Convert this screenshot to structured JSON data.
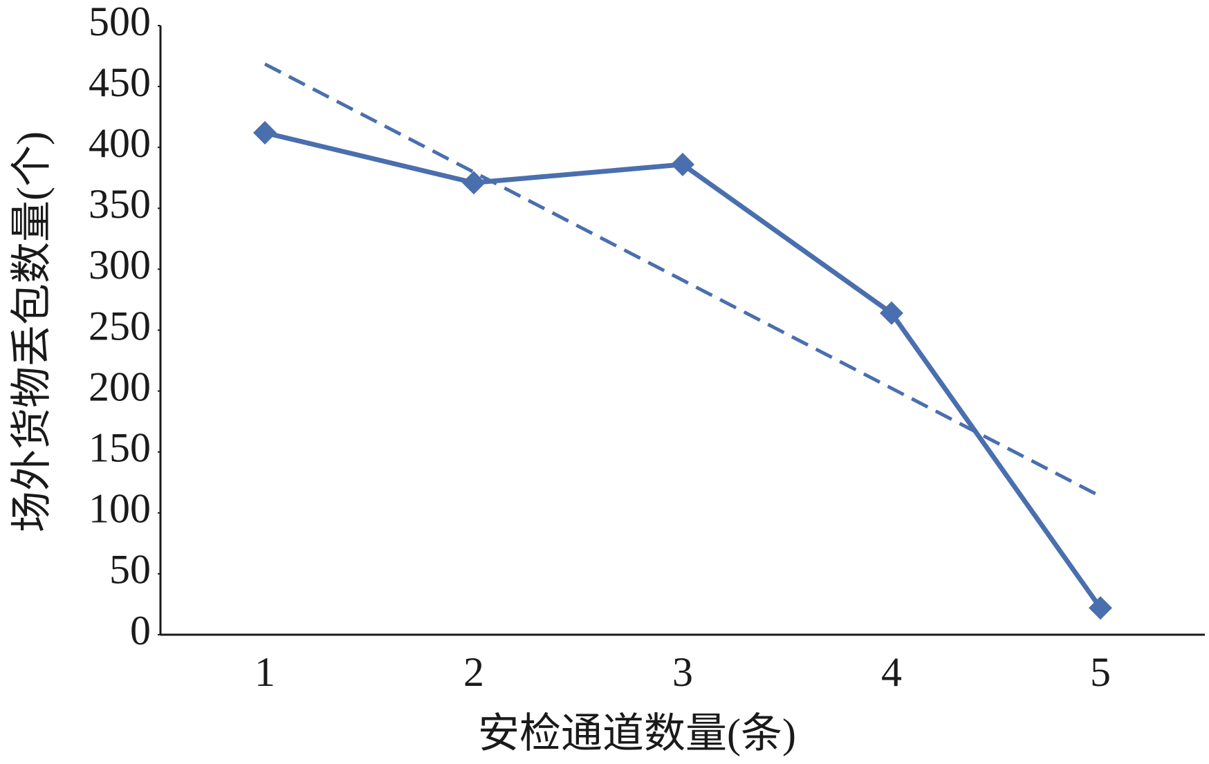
{
  "chart_data": {
    "type": "line",
    "x_label": "安检通道数量(条)",
    "y_label": "场外货物丢包数量(个)",
    "categories": [
      "1",
      "2",
      "3",
      "4",
      "5"
    ],
    "series": [
      {
        "color": "#4a6fae",
        "values": [
          412,
          371,
          386,
          264,
          22
        ],
        "marker": "diamond",
        "dash": false
      },
      {
        "color": "#4a6fae",
        "values": [
          468.4,
          379.7,
          291,
          202.3,
          113.6
        ],
        "marker": "none",
        "dash": true
      }
    ],
    "ylim": [
      0,
      500
    ],
    "yticks": [
      0,
      50,
      100,
      150,
      200,
      250,
      300,
      350,
      400,
      450,
      500
    ],
    "grid": false
  }
}
